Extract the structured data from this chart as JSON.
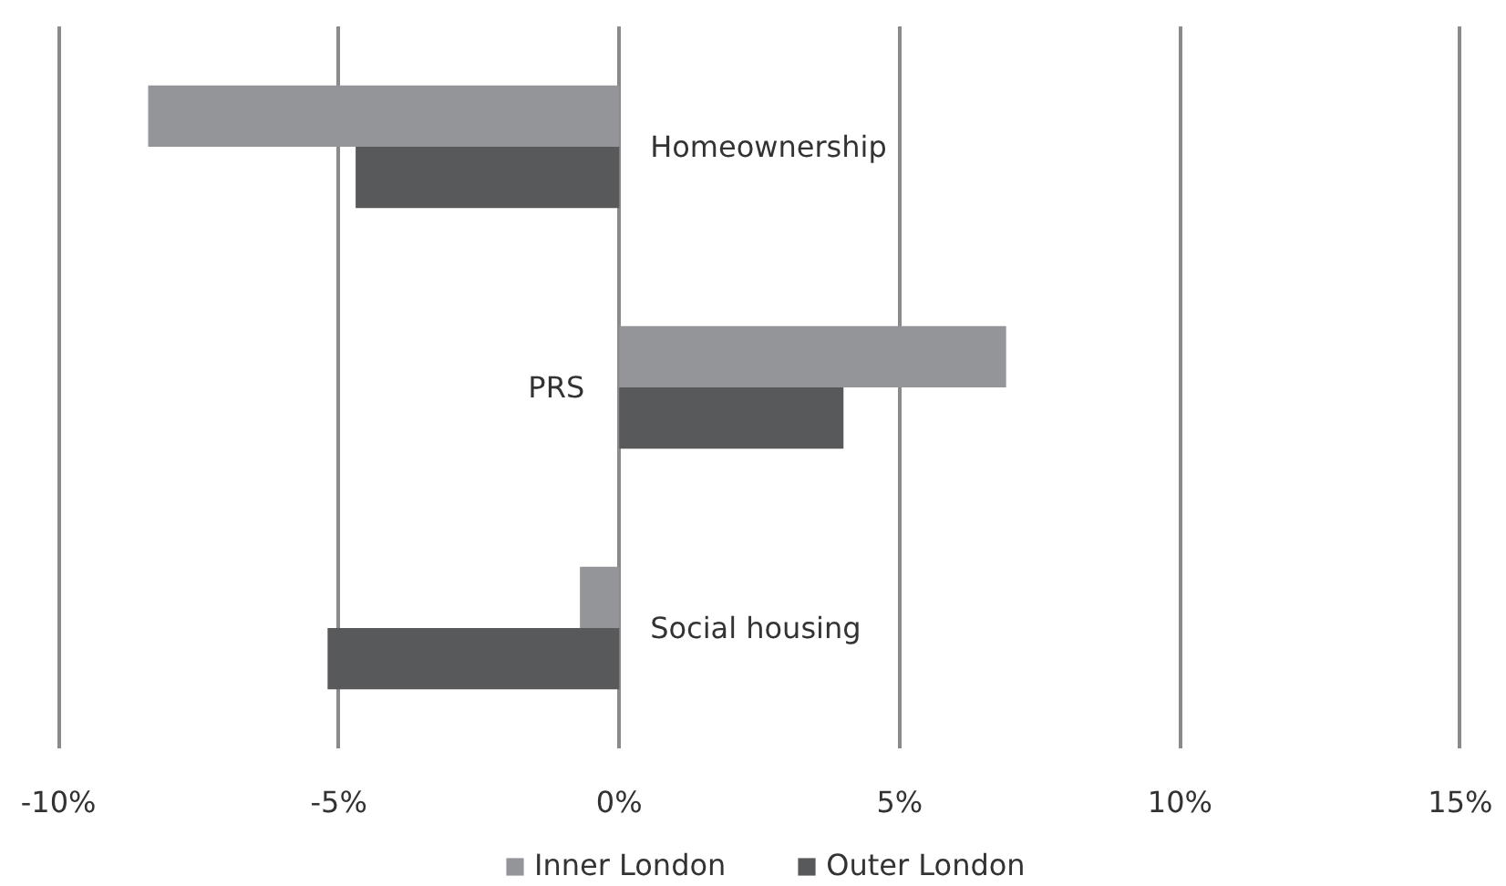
{
  "chart_data": {
    "type": "bar",
    "orientation": "horizontal",
    "categories": [
      "Homeownership",
      "PRS",
      "Social housing"
    ],
    "series": [
      {
        "name": "Inner London",
        "color": "#939598",
        "values": [
          -8.4,
          6.9,
          -0.7
        ]
      },
      {
        "name": "Outer London",
        "color": "#58595b",
        "values": [
          -4.7,
          4.0,
          -5.2
        ]
      }
    ],
    "xlim": [
      -10,
      15
    ],
    "xticks": [
      {
        "value": -10,
        "label": "-10%"
      },
      {
        "value": -5,
        "label": "-5%"
      },
      {
        "value": 0,
        "label": "0%"
      },
      {
        "value": 5,
        "label": "5%"
      },
      {
        "value": 10,
        "label": "10%"
      },
      {
        "value": 15,
        "label": "15%"
      }
    ],
    "grid": "x",
    "legend": "bottom"
  }
}
